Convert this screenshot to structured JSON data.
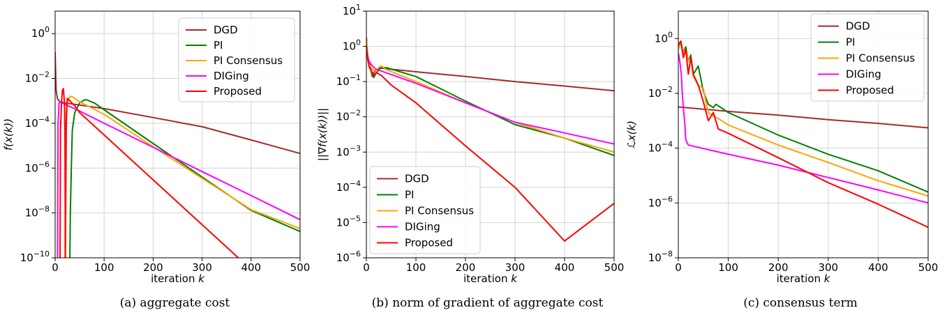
{
  "chart_data": [
    {
      "type": "line",
      "caption": "(a) aggregate cost",
      "xlabel": "iteration k",
      "ylabel": "f(x(k))",
      "xlim": [
        0,
        500
      ],
      "ylim_log10": [
        -10,
        1
      ],
      "yscale": "log",
      "grid": true,
      "legend_position": "upper-right",
      "x_ticks": [
        "0",
        "100",
        "200",
        "300",
        "400",
        "500"
      ],
      "y_ticks": [
        {
          "base": "10",
          "exp": "−10",
          "p": -10
        },
        {
          "base": "10",
          "exp": "−8",
          "p": -8
        },
        {
          "base": "10",
          "exp": "−6",
          "p": -6
        },
        {
          "base": "10",
          "exp": "−4",
          "p": -4
        },
        {
          "base": "10",
          "exp": "−2",
          "p": -2
        },
        {
          "base": "10",
          "exp": "0",
          "p": 0
        }
      ],
      "series": [
        {
          "name": "DGD",
          "color": "#a52a2a",
          "x": [
            0,
            1,
            2,
            5,
            10,
            20,
            50,
            100,
            200,
            300,
            400,
            500
          ],
          "y": [
            0.15,
            0.02,
            0.003,
            0.0012,
            0.0009,
            0.0008,
            0.00065,
            0.00045,
            0.00018,
            7e-05,
            1.8e-05,
            4.5e-06
          ]
        },
        {
          "name": "PI",
          "color": "#008000",
          "x": [
            30,
            31,
            33,
            35,
            40,
            50,
            60,
            65,
            80,
            100,
            200,
            300,
            400,
            500
          ],
          "y": [
            1e-10,
            1e-08,
            1e-06,
            5e-05,
            0.0003,
            0.0008,
            0.0011,
            0.0011,
            0.0008,
            0.0004,
            1.25e-05,
            4e-07,
            1.3e-08,
            1.5e-09
          ]
        },
        {
          "name": "PI Consensus",
          "color": "#ffa500",
          "x": [
            20,
            22,
            25,
            30,
            35,
            50,
            100,
            200,
            300,
            400,
            500
          ],
          "y": [
            1e-10,
            3e-05,
            0.0008,
            0.0016,
            0.0015,
            0.0009,
            0.00025,
            9e-06,
            3.5e-07,
            1.4e-08,
            2e-09
          ]
        },
        {
          "name": "DIGing",
          "color": "#ff00ff",
          "x": [
            5,
            6,
            8,
            10,
            15,
            20,
            50,
            100,
            200,
            300,
            400,
            500
          ],
          "y": [
            1e-10,
            0.0001,
            0.0008,
            0.0009,
            0.0008,
            0.0007,
            0.00035,
            0.0001,
            8.5e-06,
            7e-07,
            6e-08,
            5e-09
          ]
        },
        {
          "name": "Proposed",
          "color": "#ff0000",
          "x": [
            10,
            11,
            13,
            15,
            17,
            19,
            20,
            21,
            23,
            25,
            30,
            40,
            50,
            100,
            200,
            300,
            400,
            460
          ],
          "y": [
            1e-10,
            5e-05,
            0.0008,
            0.003,
            0.0035,
            0.0008,
            5e-05,
            1e-10,
            0.0003,
            0.0013,
            0.001,
            0.0006,
            0.0003,
            3e-05,
            3e-07,
            3e-09,
            3e-11,
            1e-10
          ]
        }
      ]
    },
    {
      "type": "line",
      "caption": "(b) norm of gradient of aggregate cost",
      "xlabel": "iteration k",
      "ylabel": "||∇f(x(k))||",
      "xlim": [
        0,
        500
      ],
      "ylim_log10": [
        -6,
        1
      ],
      "yscale": "log",
      "grid": true,
      "legend_position": "lower-left",
      "x_ticks": [
        "0",
        "100",
        "200",
        "300",
        "400",
        "500"
      ],
      "y_ticks": [
        {
          "base": "10",
          "exp": "−6",
          "p": -6
        },
        {
          "base": "10",
          "exp": "−5",
          "p": -5
        },
        {
          "base": "10",
          "exp": "−4",
          "p": -4
        },
        {
          "base": "10",
          "exp": "−3",
          "p": -3
        },
        {
          "base": "10",
          "exp": "−2",
          "p": -2
        },
        {
          "base": "10",
          "exp": "−1",
          "p": -1
        },
        {
          "base": "10",
          "exp": "0",
          "p": 0
        },
        {
          "base": "10",
          "exp": "1",
          "p": 1
        }
      ],
      "series": [
        {
          "name": "DGD",
          "color": "#a52a2a",
          "x": [
            0,
            2,
            5,
            8,
            12,
            15,
            20,
            30,
            100,
            200,
            300,
            400,
            500
          ],
          "y": [
            1.8,
            0.7,
            0.35,
            0.25,
            0.14,
            0.18,
            0.22,
            0.24,
            0.19,
            0.14,
            0.1,
            0.075,
            0.055
          ]
        },
        {
          "name": "PI",
          "color": "#008000",
          "x": [
            0,
            3,
            6,
            10,
            15,
            20,
            30,
            40,
            100,
            200,
            300,
            400,
            500
          ],
          "y": [
            1.2,
            0.5,
            0.35,
            0.2,
            0.13,
            0.18,
            0.25,
            0.25,
            0.14,
            0.028,
            0.006,
            0.0025,
            0.0008
          ]
        },
        {
          "name": "PI Consensus",
          "color": "#ffa500",
          "x": [
            0,
            3,
            6,
            10,
            15,
            20,
            30,
            40,
            100,
            200,
            300,
            400,
            500
          ],
          "y": [
            1.5,
            0.5,
            0.3,
            0.25,
            0.2,
            0.22,
            0.28,
            0.22,
            0.1,
            0.025,
            0.007,
            0.0025,
            0.001
          ]
        },
        {
          "name": "DIGing",
          "color": "#ff00ff",
          "x": [
            0,
            5,
            10,
            20,
            30,
            100,
            200,
            300,
            400,
            500
          ],
          "y": [
            0.6,
            0.4,
            0.3,
            0.22,
            0.2,
            0.09,
            0.025,
            0.007,
            0.0035,
            0.0017
          ]
        },
        {
          "name": "Proposed",
          "color": "#ff0000",
          "x": [
            0,
            3,
            6,
            10,
            15,
            20,
            30,
            50,
            100,
            200,
            300,
            400,
            500
          ],
          "y": [
            1.0,
            0.4,
            0.25,
            0.2,
            0.15,
            0.18,
            0.15,
            0.08,
            0.025,
            0.0015,
            0.0001,
            3e-06,
            3.5e-05
          ]
        }
      ]
    },
    {
      "type": "line",
      "caption": "(c) consensus term",
      "xlabel": "iteration k",
      "ylabel": "ℒx(k)",
      "xlim": [
        0,
        500
      ],
      "ylim_log10": [
        -8,
        1
      ],
      "yscale": "log",
      "grid": true,
      "legend_position": "upper-right",
      "x_ticks": [
        "0",
        "100",
        "200",
        "300",
        "400",
        "500"
      ],
      "y_ticks": [
        {
          "base": "10",
          "exp": "−8",
          "p": -8
        },
        {
          "base": "10",
          "exp": "−6",
          "p": -6
        },
        {
          "base": "10",
          "exp": "−4",
          "p": -4
        },
        {
          "base": "10",
          "exp": "−2",
          "p": -2
        },
        {
          "base": "10",
          "exp": "0",
          "p": 0
        }
      ],
      "series": [
        {
          "name": "DGD",
          "color": "#a52a2a",
          "x": [
            0,
            100,
            200,
            300,
            400,
            500
          ],
          "y": [
            0.0032,
            0.0022,
            0.0016,
            0.0011,
            0.0008,
            0.00055
          ]
        },
        {
          "name": "PI",
          "color": "#008000",
          "x": [
            0,
            5,
            10,
            15,
            20,
            25,
            30,
            40,
            50,
            60,
            70,
            75,
            80,
            100,
            200,
            300,
            400,
            500
          ],
          "y": [
            0.5,
            0.8,
            0.3,
            0.5,
            0.15,
            0.25,
            0.05,
            0.1,
            0.012,
            0.004,
            0.003,
            0.004,
            0.0035,
            0.002,
            0.0003,
            6e-05,
            1.5e-05,
            2.5e-06
          ]
        },
        {
          "name": "PI Consensus",
          "color": "#ffa500",
          "x": [
            0,
            5,
            10,
            15,
            20,
            25,
            30,
            40,
            50,
            55,
            60,
            70,
            80,
            100,
            200,
            300,
            400,
            500
          ],
          "y": [
            0.4,
            0.7,
            0.3,
            0.4,
            0.15,
            0.2,
            0.04,
            0.02,
            0.015,
            0.005,
            0.002,
            0.0015,
            0.0012,
            0.0007,
            0.00013,
            3e-05,
            6.5e-06,
            1.8e-06
          ]
        },
        {
          "name": "DIGing",
          "color": "#ff00ff",
          "x": [
            0,
            3,
            6,
            8,
            10,
            13,
            15,
            20,
            100,
            200,
            300,
            400,
            500
          ],
          "y": [
            0.3,
            0.15,
            0.05,
            0.01,
            0.003,
            0.0008,
            0.0002,
            0.00013,
            6e-05,
            2.4e-05,
            8.5e-06,
            3e-06,
            1e-06
          ]
        },
        {
          "name": "Proposed",
          "color": "#ff0000",
          "x": [
            0,
            5,
            10,
            15,
            20,
            25,
            30,
            40,
            50,
            60,
            70,
            80,
            100,
            200,
            300,
            400,
            500
          ],
          "y": [
            0.6,
            0.8,
            0.2,
            0.4,
            0.05,
            0.2,
            0.05,
            0.02,
            0.005,
            0.001,
            0.002,
            0.0005,
            0.00035,
            4.5e-05,
            5.5e-06,
            9e-07,
            1.3e-07
          ]
        }
      ]
    }
  ]
}
